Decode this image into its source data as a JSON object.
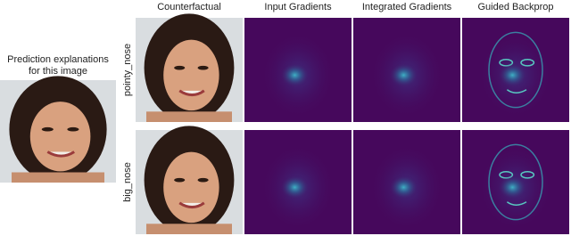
{
  "source_caption": {
    "lines": [
      "Prediction explanations",
      "for this image"
    ]
  },
  "columns": [
    "Counterfactual",
    "Input Gradients",
    "Integrated Gradients",
    "Guided Backprop"
  ],
  "rows": [
    "pointy_nose",
    "big_nose"
  ]
}
